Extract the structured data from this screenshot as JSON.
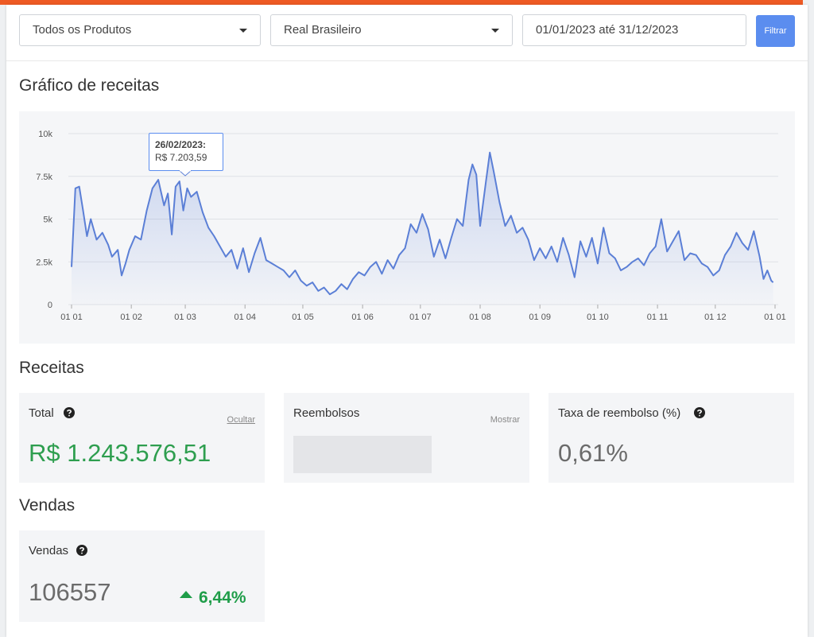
{
  "filters": {
    "product": "Todos os Produtos",
    "currency": "Real Brasileiro",
    "date_range": "01/01/2023 até 31/12/2023",
    "button": "Filtrar"
  },
  "chart_data": {
    "type": "line",
    "title": "Gráfico de receitas",
    "x": [
      0,
      2,
      4,
      6,
      8,
      10,
      13,
      16,
      19,
      21,
      24,
      26,
      28,
      30,
      33,
      36,
      39,
      42,
      45,
      48,
      50,
      52,
      54,
      56,
      58,
      60,
      62,
      65,
      68,
      71,
      74,
      77,
      80,
      83,
      86,
      89,
      92,
      95,
      98,
      101,
      104,
      107,
      110,
      113,
      116,
      119,
      122,
      125,
      128,
      131,
      134,
      137,
      140,
      143,
      146,
      149,
      152,
      155,
      158,
      161,
      164,
      167,
      170,
      173,
      176,
      179,
      182,
      185,
      188,
      191,
      194,
      197,
      200,
      203,
      206,
      208,
      210,
      212,
      215,
      217,
      219,
      222,
      225,
      228,
      231,
      234,
      237,
      240,
      243,
      246,
      249,
      252,
      255,
      258,
      261,
      264,
      267,
      270,
      273,
      276,
      279,
      282,
      285,
      288,
      291,
      294,
      297,
      300,
      303,
      306,
      309,
      312,
      315,
      318,
      321,
      324,
      327,
      330,
      333,
      336,
      339,
      342,
      345,
      348,
      351,
      354,
      357,
      359,
      361,
      363,
      364
    ],
    "series": [
      {
        "name": "Receitas",
        "color": "#5b7fd6",
        "values": [
          2200,
          6800,
          6900,
          5500,
          4000,
          5000,
          3800,
          4200,
          3500,
          2800,
          3200,
          1700,
          2400,
          3200,
          4000,
          3800,
          5500,
          6800,
          7300,
          5800,
          6500,
          4100,
          6900,
          7203.59,
          5500,
          6800,
          6300,
          6600,
          5400,
          4500,
          4000,
          3400,
          2800,
          3200,
          2100,
          3300,
          1900,
          3000,
          3900,
          2600,
          2400,
          2200,
          2000,
          1600,
          2000,
          1400,
          1100,
          1300,
          800,
          1000,
          600,
          800,
          1200,
          900,
          1500,
          1900,
          1700,
          2200,
          2500,
          1800,
          2600,
          2100,
          2900,
          3300,
          4700,
          4200,
          5300,
          4400,
          2800,
          3800,
          2700,
          3900,
          5000,
          4600,
          7300,
          8200,
          7600,
          4600,
          7200,
          8900,
          7800,
          6000,
          4600,
          5200,
          4200,
          4500,
          3800,
          2600,
          3300,
          2700,
          3400,
          2500,
          3900,
          2900,
          1600,
          3700,
          2800,
          3900,
          2400,
          4500,
          3000,
          2700,
          2000,
          2200,
          2500,
          2700,
          2300,
          3000,
          3400,
          5000,
          3100,
          3700,
          4300,
          2600,
          3000,
          2900,
          2400,
          2200,
          1700,
          2000,
          2900,
          3400,
          4200,
          3600,
          3200,
          4300,
          2800,
          1500,
          2000,
          1400,
          1300
        ]
      }
    ],
    "xlim": [
      0,
      365
    ],
    "xticks": [
      {
        "value": 0,
        "label": "01 01"
      },
      {
        "value": 31,
        "label": "01 02"
      },
      {
        "value": 59,
        "label": "01 03"
      },
      {
        "value": 90,
        "label": "01 04"
      },
      {
        "value": 120,
        "label": "01 05"
      },
      {
        "value": 151,
        "label": "01 06"
      },
      {
        "value": 181,
        "label": "01 07"
      },
      {
        "value": 212,
        "label": "01 08"
      },
      {
        "value": 243,
        "label": "01 09"
      },
      {
        "value": 273,
        "label": "01 10"
      },
      {
        "value": 304,
        "label": "01 11"
      },
      {
        "value": 334,
        "label": "01 12"
      },
      {
        "value": 365,
        "label": "01 01"
      }
    ],
    "ylim": [
      0,
      10000
    ],
    "yticks": [
      0,
      {
        "value": 2500,
        "label": "2.5k"
      },
      {
        "value": 5000,
        "label": "5k"
      },
      {
        "value": 7500,
        "label": "7.5k"
      },
      {
        "value": 10000,
        "label": "10k"
      }
    ],
    "grid": true,
    "tooltip": {
      "title": "26/02/2023:",
      "label": "R$ 7.203,59"
    }
  },
  "revenue": {
    "title": "Receitas",
    "total": {
      "label": "Total",
      "link": "Ocultar",
      "value": "R$ 1.243.576,51"
    },
    "refunds": {
      "label": "Reembolsos",
      "link": "Mostrar"
    },
    "refund_rate": {
      "label": "Taxa de reembolso (%)",
      "value": "0,61%"
    }
  },
  "sales": {
    "title": "Vendas",
    "card": {
      "label": "Vendas",
      "value": "106557",
      "change": "6,44%"
    }
  }
}
